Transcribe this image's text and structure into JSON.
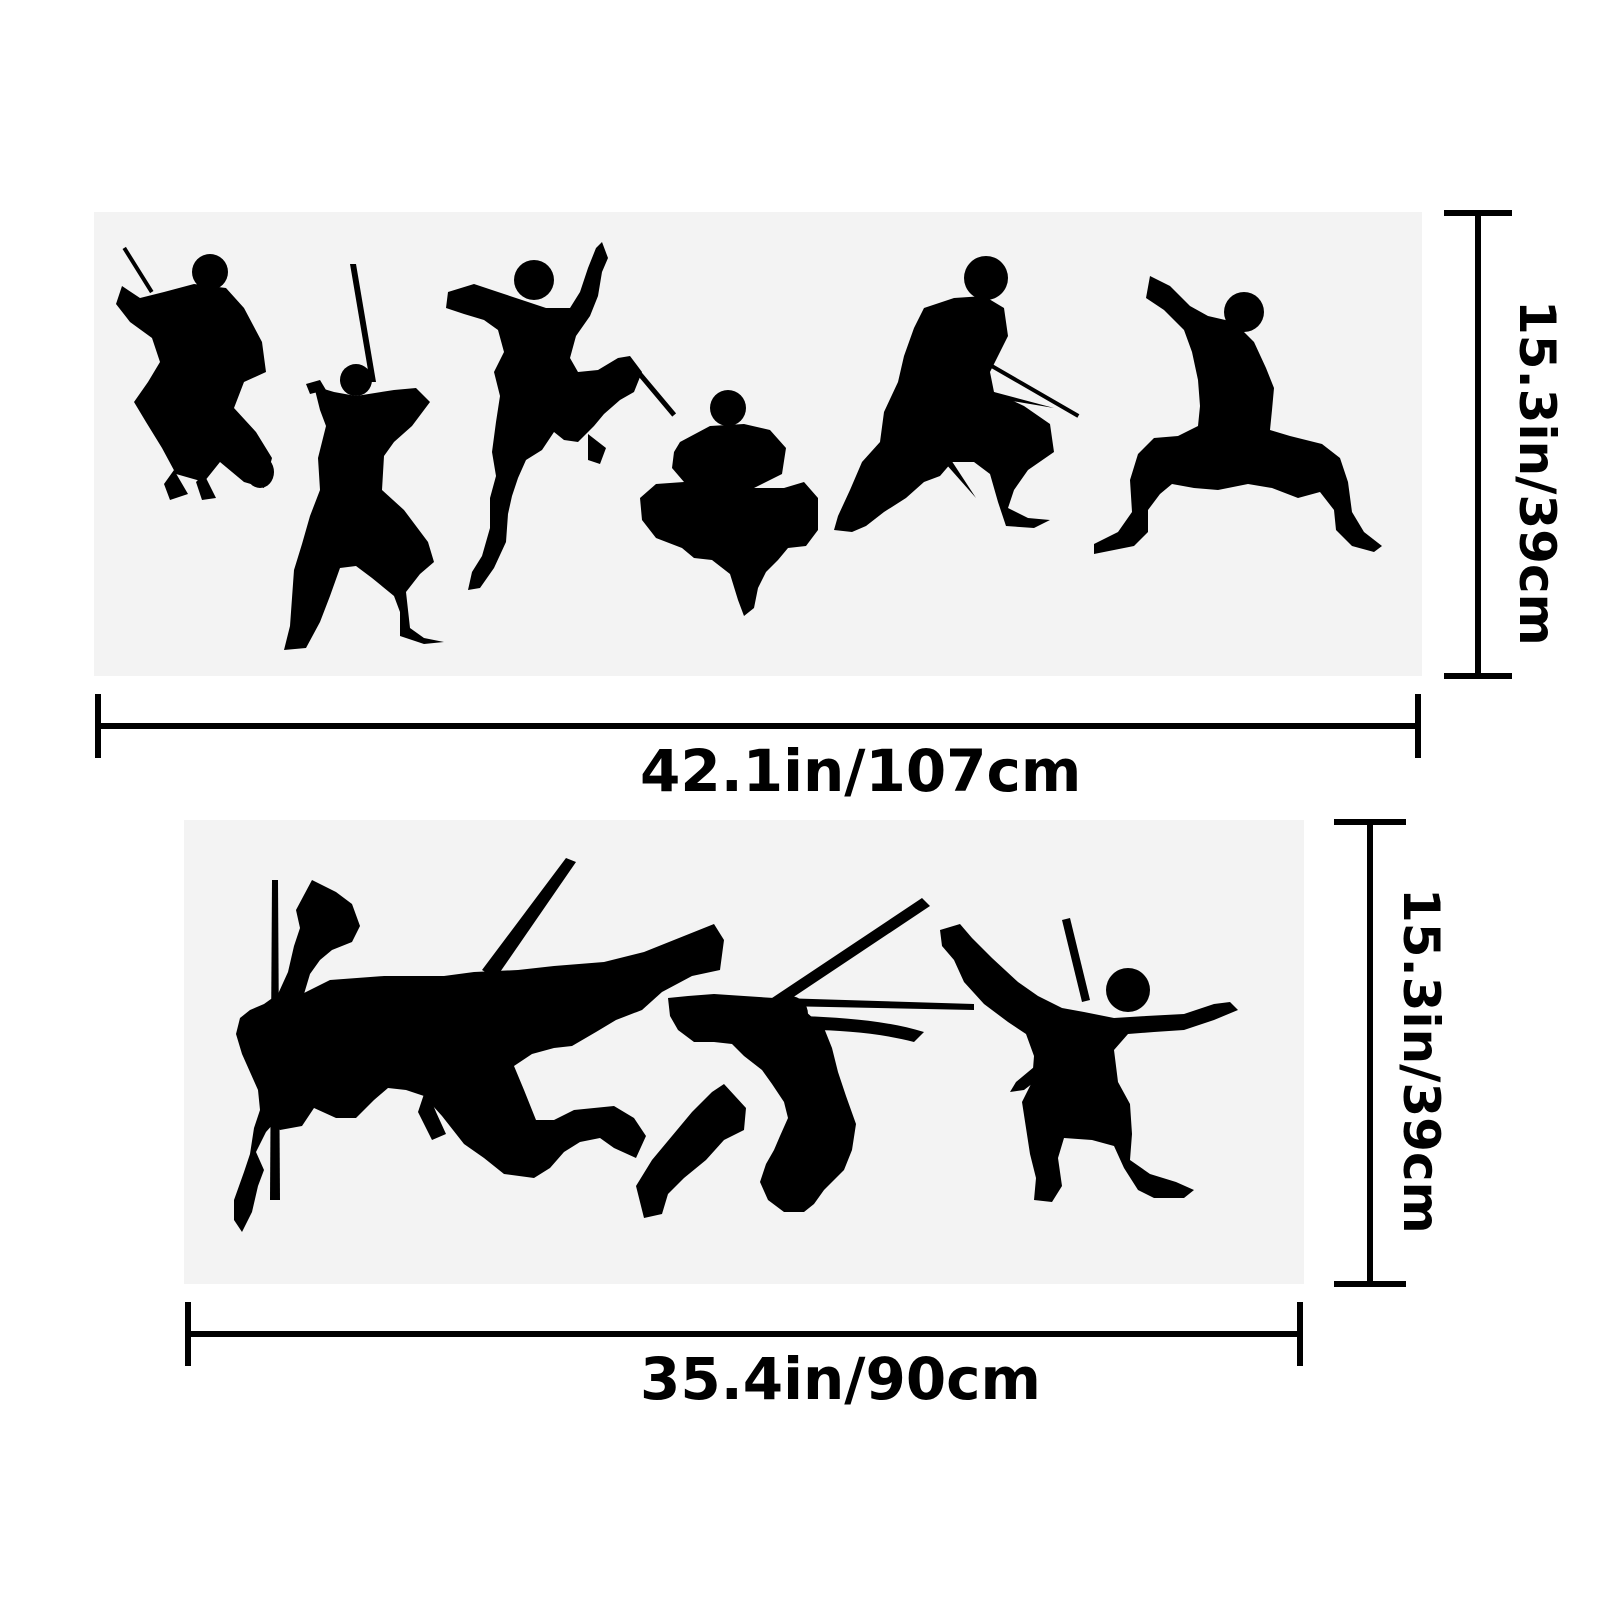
{
  "dimensions": {
    "top_sheet": {
      "width_label": "42.1in/107cm",
      "height_label": "15.3in/39cm"
    },
    "bottom_sheet": {
      "width_label": "35.4in/90cm",
      "height_label": "15.3in/39cm"
    }
  },
  "colors": {
    "silhouette": "#000000",
    "sheet_background": "#f3f3f3",
    "page_background": "#ffffff"
  }
}
